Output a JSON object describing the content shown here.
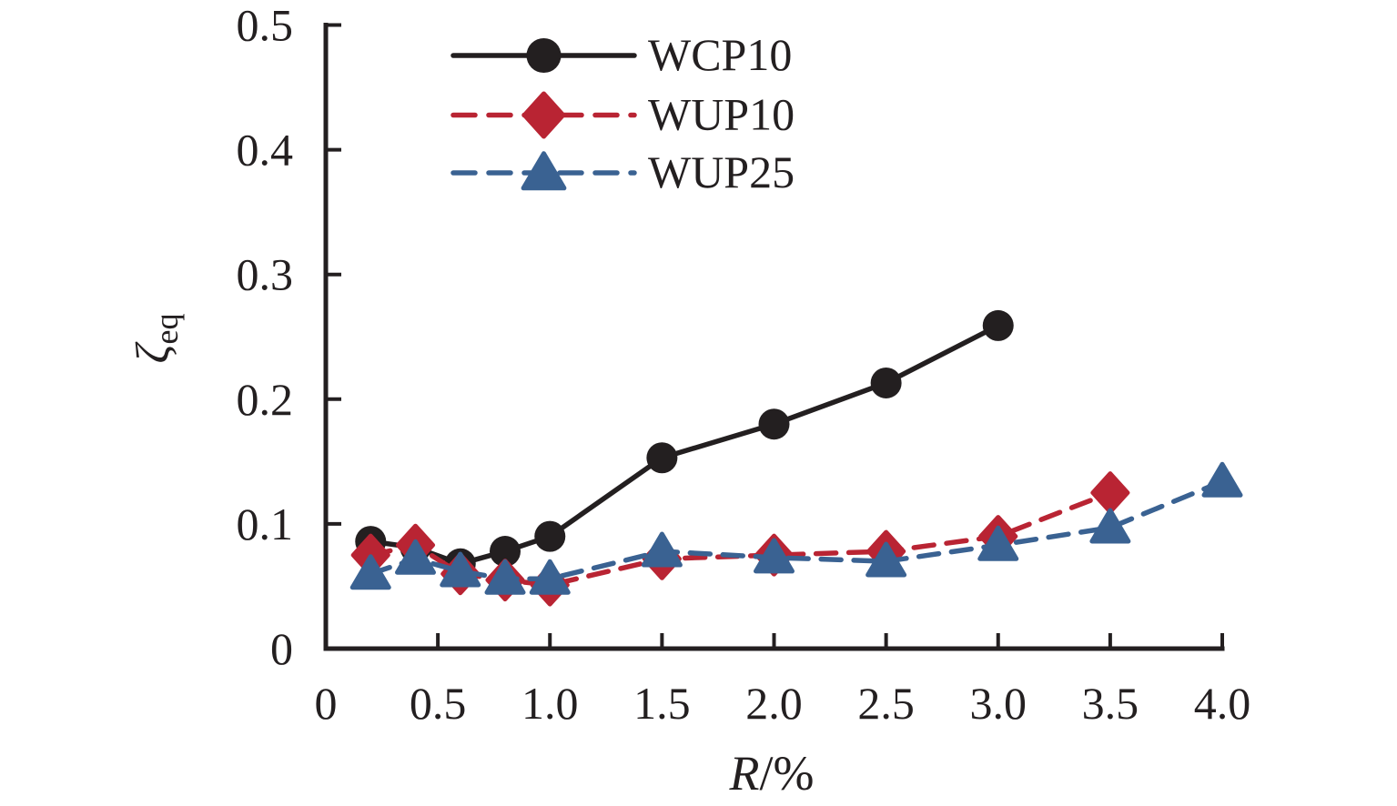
{
  "figure": {
    "background": "#ffffff",
    "axis_color": "#231f20"
  },
  "chart_data": {
    "type": "line",
    "title": "",
    "xlabel": "R/%",
    "xlabel_italic_part": "R",
    "xlabel_plain_part": "/%",
    "ylabel": "ζeq",
    "ylabel_symbol": "ζ",
    "ylabel_subscript": "eq",
    "xlim": [
      0,
      4.0
    ],
    "ylim": [
      0,
      0.5
    ],
    "x_ticks": [
      0,
      0.5,
      1.0,
      1.5,
      2.0,
      2.5,
      3.0,
      3.5,
      4.0
    ],
    "x_tick_labels": [
      "0",
      "0.5",
      "1.0",
      "1.5",
      "2.0",
      "2.5",
      "3.0",
      "3.5",
      "4.0"
    ],
    "y_ticks": [
      0,
      0.1,
      0.2,
      0.3,
      0.4,
      0.5
    ],
    "y_tick_labels": [
      "0",
      "0.1",
      "0.2",
      "0.3",
      "0.4",
      "0.5"
    ],
    "grid": false,
    "legend_position": "top-left-inside",
    "series": [
      {
        "name": "WCP10",
        "color": "#231f20",
        "line_style": "solid",
        "marker": "circle",
        "x": [
          0.2,
          0.4,
          0.6,
          0.8,
          1.0,
          1.5,
          2.0,
          2.5,
          3.0
        ],
        "y": [
          0.086,
          0.081,
          0.068,
          0.078,
          0.09,
          0.153,
          0.18,
          0.213,
          0.259
        ]
      },
      {
        "name": "WUP10",
        "color": "#b92433",
        "line_style": "dashed",
        "marker": "diamond",
        "x": [
          0.2,
          0.4,
          0.6,
          0.8,
          1.0,
          1.5,
          2.0,
          2.5,
          3.0,
          3.5
        ],
        "y": [
          0.075,
          0.083,
          0.06,
          0.055,
          0.051,
          0.072,
          0.075,
          0.078,
          0.09,
          0.125
        ]
      },
      {
        "name": "WUP25",
        "color": "#3a6292",
        "line_style": "dashed",
        "marker": "triangle",
        "x": [
          0.2,
          0.4,
          0.6,
          0.8,
          1.0,
          1.5,
          2.0,
          2.5,
          3.0,
          3.5,
          4.0
        ],
        "y": [
          0.06,
          0.072,
          0.062,
          0.056,
          0.056,
          0.078,
          0.073,
          0.07,
          0.083,
          0.097,
          0.134
        ]
      }
    ]
  }
}
